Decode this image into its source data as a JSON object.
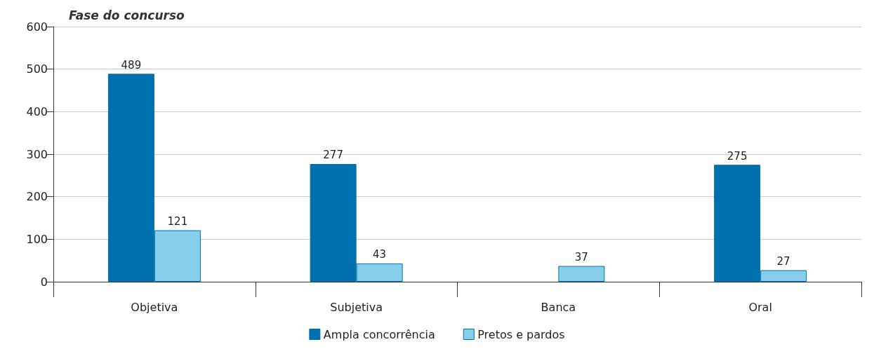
{
  "chart_data": {
    "type": "bar",
    "title": "Fase do concurso",
    "categories": [
      "Objetiva",
      "Subjetiva",
      "Banca",
      "Oral"
    ],
    "series": [
      {
        "name": "Ampla concorrência",
        "color": "#0070ae",
        "values": [
          489,
          277,
          null,
          275
        ]
      },
      {
        "name": "Pretos e pardos",
        "color": "#87ceeb",
        "values": [
          121,
          43,
          37,
          27
        ]
      }
    ],
    "ylim": [
      0,
      600
    ],
    "yticks": [
      0,
      100,
      200,
      300,
      400,
      500,
      600
    ],
    "grid": "y",
    "legend": "bottom",
    "data_labels": true
  }
}
